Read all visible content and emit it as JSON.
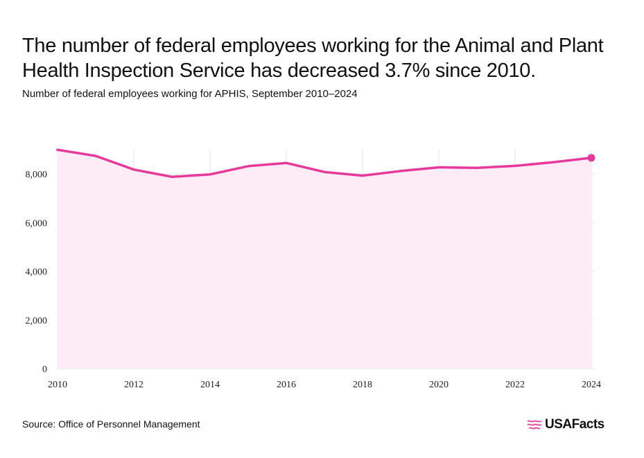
{
  "header": {
    "title": "The number of federal employees working for the Animal and Plant Health Inspection Service has decreased 3.7% since 2010.",
    "subtitle": "Number of federal employees working for APHIS, September 2010–2024"
  },
  "footer": {
    "source": "Source: Office of Personnel Management",
    "logo_text": "USAFacts"
  },
  "colors": {
    "line": "#e6399b",
    "area": "#fdecf5",
    "grid": "#e6e6e6"
  },
  "chart_data": {
    "type": "area",
    "title": "The number of federal employees working for the Animal and Plant Health Inspection Service has decreased 3.7% since 2010.",
    "subtitle": "Number of federal employees working for APHIS, September 2010–2024",
    "xlabel": "",
    "ylabel": "",
    "x": [
      2010,
      2011,
      2012,
      2013,
      2014,
      2015,
      2016,
      2017,
      2018,
      2019,
      2020,
      2021,
      2022,
      2023,
      2024
    ],
    "values": [
      8990,
      8740,
      8180,
      7880,
      7980,
      8320,
      8450,
      8080,
      7930,
      8120,
      8270,
      8250,
      8330,
      8480,
      8660
    ],
    "xlim": [
      2010,
      2024
    ],
    "ylim": [
      0,
      9000
    ],
    "x_ticks": [
      2010,
      2012,
      2014,
      2016,
      2018,
      2020,
      2022,
      2024
    ],
    "x_tick_labels": [
      "2010",
      "2012",
      "2014",
      "2016",
      "2018",
      "2020",
      "2022",
      "2024"
    ],
    "y_ticks": [
      0,
      2000,
      4000,
      6000,
      8000
    ],
    "y_tick_labels": [
      "0",
      "2,000",
      "4,000",
      "6,000",
      "8,000"
    ],
    "grid": true,
    "legend": "none",
    "last_point_marker": true
  }
}
